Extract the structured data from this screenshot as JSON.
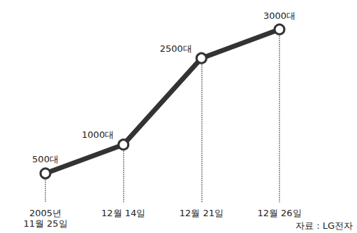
{
  "chart_data": {
    "type": "line",
    "categories": [
      "2005년 11월 25일",
      "12월 14일",
      "12월 21일",
      "12월 26일"
    ],
    "values": [
      500,
      1000,
      2500,
      3000
    ],
    "value_labels": [
      "500대",
      "1000대",
      "2500대",
      "3000대"
    ],
    "data_labels": true,
    "ylim": [
      0,
      3000
    ],
    "tick_labels": "x",
    "grid": false,
    "color": "#333333",
    "marker": "circle",
    "line_style": "solid",
    "annotations": [
      "자료 : LG전자"
    ]
  }
}
